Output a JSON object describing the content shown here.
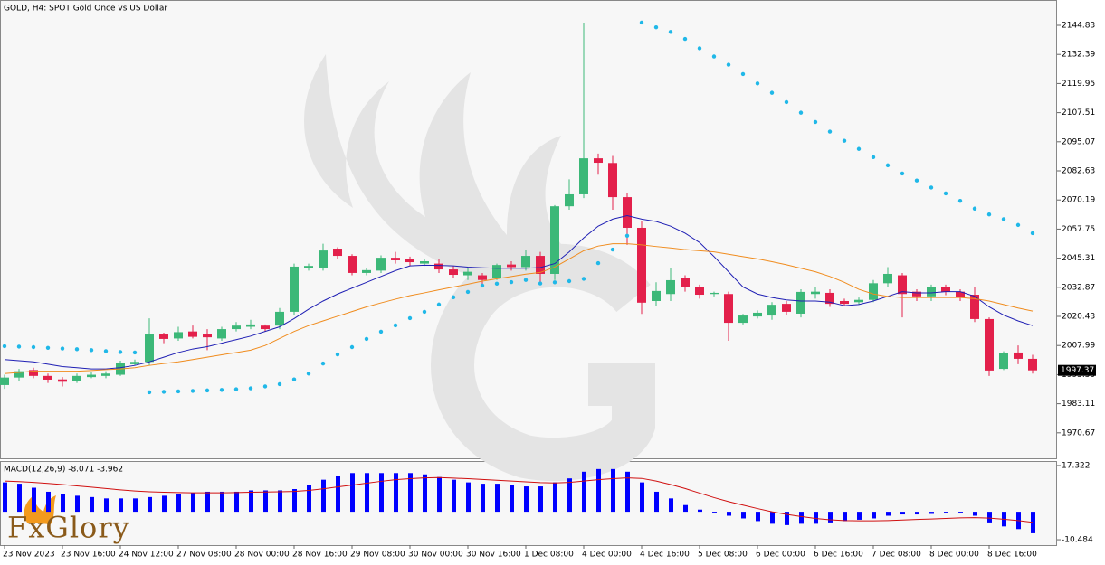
{
  "chart_data": [
    {
      "type": "candlestick",
      "title": "GOLD, H4:  SPOT Gold Once vs US Dollar",
      "categories": [
        "23 Nov 2023",
        null,
        null,
        null,
        "23 Nov 16:00",
        null,
        null,
        null,
        "24 Nov 12:00",
        null,
        null,
        null,
        "27 Nov 08:00",
        null,
        null,
        null,
        "28 Nov 00:00",
        null,
        null,
        null,
        "28 Nov 16:00",
        null,
        null,
        null,
        "29 Nov 08:00",
        null,
        null,
        null,
        "30 Nov 00:00",
        null,
        null,
        null,
        "30 Nov 16:00",
        null,
        null,
        null,
        "1 Dec 08:00",
        null,
        null,
        null,
        "4 Dec 00:00",
        null,
        null,
        null,
        "4 Dec 16:00",
        null,
        null,
        null,
        "5 Dec 08:00",
        null,
        null,
        null,
        "6 Dec 00:00",
        null,
        null,
        null,
        "6 Dec 16:00",
        null,
        null,
        null,
        "7 Dec 08:00",
        null,
        null,
        null,
        "8 Dec 00:00",
        null,
        null,
        null,
        "8 Dec 16:00",
        null,
        null,
        null
      ],
      "open": [
        1991.1,
        1994.3,
        1997.5,
        1995,
        1993.5,
        1993,
        1994.5,
        1995,
        1995.5,
        2000,
        2001,
        2012.7,
        2011,
        2014,
        2012.7,
        2011,
        2015,
        2016,
        2016.5,
        2016.5,
        2022.4,
        2041,
        2041.3,
        2049.4,
        2046.3,
        2039,
        2040,
        2045.5,
        2045,
        2043,
        2043,
        2040.5,
        2038,
        2038,
        2037,
        2042.6,
        2041.5,
        2046.3,
        2038.6,
        2067.5,
        2072.6,
        2088,
        2086,
        2071.4,
        2058.3,
        2027,
        2030,
        2036.7,
        2032.8,
        2030,
        2030,
        2017.7,
        2020.4,
        2020.8,
        2025.8,
        2021.6,
        2030,
        2030.5,
        2027,
        2026.5,
        2027.5,
        2034.6,
        2038,
        2031,
        2029,
        2032.8,
        2031,
        2029.7,
        2019.3,
        1998,
        2005,
        2002.3
      ],
      "high": [
        1995.5,
        1998,
        1998.5,
        1996,
        1994.5,
        1996,
        1996.5,
        1997,
        2001.5,
        2002,
        2019.6,
        2013.5,
        2016,
        2016.5,
        2015,
        2016,
        2018,
        2019,
        2017,
        2024,
        2043,
        2043,
        2051.5,
        2050,
        2047,
        2041,
        2046.5,
        2048,
        2046,
        2045,
        2045,
        2042,
        2041,
        2039,
        2043,
        2044,
        2049,
        2048,
        2068,
        2079,
        2146,
        2090,
        2089,
        2073,
        2061,
        2035,
        2041,
        2038,
        2034,
        2031,
        2031,
        2021.5,
        2023,
        2026.5,
        2027,
        2032,
        2033,
        2032,
        2028,
        2028.5,
        2036,
        2041.5,
        2039,
        2032,
        2034,
        2034,
        2032,
        2033,
        2020,
        2005.5,
        2008,
        2004
      ],
      "low": [
        1989.5,
        1993,
        1994,
        1992,
        1990.5,
        1992,
        1994,
        1994,
        1995,
        1999.5,
        1999.5,
        2009,
        2010,
        2011,
        2006,
        2010,
        2014,
        2015,
        2014,
        2015,
        2021,
        2040,
        2040,
        2045,
        2038,
        2038,
        2039,
        2043,
        2042,
        2042,
        2039,
        2037,
        2036,
        2034,
        2036,
        2040,
        2040,
        2035,
        2036,
        2066,
        2071,
        2081,
        2066,
        2051,
        2021.5,
        2025,
        2027,
        2031,
        2028,
        2029,
        2010,
        2017,
        2019.5,
        2019,
        2021,
        2020,
        2028,
        2024.5,
        2025,
        2025.5,
        2026.5,
        2033,
        2020,
        2027,
        2027,
        2029.5,
        2027,
        2018,
        1995,
        1997.5,
        2000,
        1996
      ],
      "close": [
        1994.3,
        1997,
        1995,
        1993.4,
        1992.5,
        1995,
        1995.5,
        1996,
        2000.5,
        2001,
        2012.7,
        2010.8,
        2013.7,
        2011.7,
        2011.5,
        2015,
        2016.5,
        2017,
        2015,
        2022.4,
        2041.7,
        2042,
        2048.6,
        2046.3,
        2039,
        2040.2,
        2045.5,
        2044.4,
        2043.6,
        2044,
        2040.5,
        2038.2,
        2039.5,
        2036,
        2042.4,
        2041.5,
        2046.3,
        2038.6,
        2067.5,
        2072.6,
        2088,
        2086.1,
        2071.4,
        2058.3,
        2026.3,
        2031.3,
        2035.9,
        2032.8,
        2029.7,
        2030.5,
        2017.7,
        2020.8,
        2022,
        2025.4,
        2022.4,
        2030.9,
        2031,
        2025.8,
        2025.8,
        2027.5,
        2034.6,
        2038.6,
        2030,
        2029,
        2032.8,
        2030.9,
        2028.9,
        2019.3,
        1997.3,
        2004.9,
        2002.3,
        1997.37
      ],
      "up_color": "#3cb878",
      "down_color": "#e3204b",
      "overlays": [
        {
          "style": "line",
          "color": "#1f1fb4",
          "values": [
            2002,
            2001.5,
            2001,
            2000,
            1999,
            1998.5,
            1998,
            1998,
            1998.5,
            1999.5,
            2001,
            2003,
            2005,
            2006.5,
            2007.5,
            2009,
            2010.5,
            2012,
            2014,
            2016,
            2019.5,
            2023.5,
            2027,
            2030,
            2032.5,
            2035,
            2037.5,
            2040,
            2042,
            2042.3,
            2042.2,
            2042,
            2041.5,
            2041.2,
            2041,
            2041,
            2041,
            2041.3,
            2043,
            2048,
            2054,
            2059,
            2062,
            2063.5,
            2062,
            2061,
            2059,
            2056,
            2052,
            2046,
            2039.5,
            2033,
            2030,
            2028.5,
            2027.5,
            2027,
            2027,
            2026.5,
            2025,
            2025.5,
            2027,
            2029,
            2031,
            2030.5,
            2030.5,
            2031,
            2031,
            2029,
            2024.5,
            2021,
            2018.5,
            2016.5
          ]
        },
        {
          "style": "line",
          "color": "#f08c1e",
          "values": [
            1996,
            1996.5,
            1997,
            1997,
            1997,
            1997,
            1997.3,
            1997.7,
            1998,
            1998.5,
            1999.5,
            2000.3,
            2001,
            2002,
            2003,
            2004,
            2005,
            2006,
            2008,
            2011,
            2014,
            2016.5,
            2018.5,
            2020.5,
            2022.5,
            2024.5,
            2026.2,
            2027.8,
            2029.3,
            2030.5,
            2031.8,
            2033,
            2034.2,
            2035.5,
            2036.5,
            2037.5,
            2038.5,
            2039.2,
            2041.5,
            2045,
            2048.5,
            2050.5,
            2051.5,
            2051.5,
            2051,
            2050.3,
            2049.7,
            2049,
            2048.5,
            2048,
            2047,
            2046,
            2045,
            2043.8,
            2042.5,
            2041,
            2039.5,
            2037.5,
            2035,
            2032,
            2030,
            2029,
            2028.5,
            2028.5,
            2028.5,
            2028.5,
            2028.5,
            2028,
            2027,
            2025.5,
            2024,
            2022.7
          ]
        },
        {
          "style": "dots",
          "color": "#20b8e8",
          "values": [
            2007.7,
            2007.5,
            2007.3,
            2007,
            2006.7,
            2006.4,
            2006,
            2005.6,
            2005.2,
            2005,
            1988,
            1988.2,
            1988.4,
            1988.6,
            1988.8,
            1989,
            1989.3,
            1989.7,
            1990.5,
            1991.5,
            1993.5,
            1996,
            2000.3,
            2004.2,
            2007.3,
            2010.8,
            2013.9,
            2016.6,
            2019.7,
            2022.4,
            2025.5,
            2028.6,
            2030.9,
            2033.6,
            2034.4,
            2035.1,
            2036,
            2034.5,
            2035,
            2035.5,
            2036.5,
            2043.2,
            2049,
            2054.9,
            2146,
            2144,
            2142,
            2139,
            2135,
            2131.5,
            2128,
            2124,
            2120,
            2116,
            2112,
            2107.5,
            2103.5,
            2099.4,
            2095.5,
            2092,
            2088.5,
            2085,
            2081.5,
            2078.5,
            2075.5,
            2073,
            2069.8,
            2066.5,
            2064,
            2062,
            2059.5,
            2056
          ]
        }
      ],
      "last_price": 1997.37,
      "ylim": [
        1959.78,
        2155.65
      ],
      "yticks": [
        2144.83,
        2132.39,
        2119.95,
        2107.51,
        2095.07,
        2082.63,
        2070.19,
        2057.75,
        2045.31,
        2032.87,
        2020.43,
        2007.99,
        1995.55,
        1983.11,
        1970.67
      ]
    },
    {
      "type": "bar",
      "title": "MACD(12,26,9) -8.071 -3.962",
      "series": [
        {
          "style": "bar",
          "color": "#0000ff",
          "values": [
            11,
            10.5,
            9,
            7.5,
            6.5,
            6,
            5.5,
            5,
            5,
            5,
            5.5,
            6,
            6.5,
            7,
            7.5,
            7.5,
            7.5,
            8,
            8,
            8,
            8.5,
            10,
            12,
            13.5,
            14.5,
            14.5,
            14.5,
            14.5,
            14.5,
            14,
            13,
            12,
            11,
            10.5,
            10.5,
            10,
            9.5,
            9.5,
            11,
            12.5,
            15,
            16,
            16,
            15,
            11,
            7.5,
            5,
            2.5,
            0.8,
            -0.5,
            -1.5,
            -2.5,
            -3.5,
            -4.5,
            -5,
            -4.5,
            -4.5,
            -4,
            -3.5,
            -3,
            -2.5,
            -1.5,
            -1,
            -1,
            -0.8,
            -0.5,
            -0.5,
            -1.5,
            -4,
            -5.5,
            -6.5,
            -8.071
          ]
        },
        {
          "style": "line",
          "color": "#d01010",
          "values": [
            11.5,
            11.3,
            11,
            10.6,
            10.2,
            9.7,
            9.2,
            8.7,
            8.2,
            7.8,
            7.5,
            7.3,
            7.2,
            7.1,
            7.1,
            7.1,
            7.2,
            7.3,
            7.4,
            7.5,
            7.6,
            8,
            8.6,
            9.3,
            10,
            10.7,
            11.4,
            12,
            12.4,
            12.7,
            12.8,
            12.6,
            12.4,
            12.1,
            11.8,
            11.5,
            11.2,
            10.9,
            10.8,
            11,
            11.5,
            12,
            12.4,
            12.7,
            12.5,
            11.5,
            10.2,
            8.7,
            7,
            5.3,
            3.8,
            2.5,
            1.2,
            0,
            -1,
            -1.8,
            -2.5,
            -3,
            -3.3,
            -3.4,
            -3.4,
            -3.3,
            -3.1,
            -2.9,
            -2.7,
            -2.5,
            -2.3,
            -2.2,
            -2.4,
            -2.8,
            -3.3,
            -3.962
          ]
        }
      ],
      "ylim": [
        -12.5,
        19.0
      ],
      "yticks": [
        17.322,
        -10.484
      ]
    }
  ],
  "logo": "FxGlory"
}
